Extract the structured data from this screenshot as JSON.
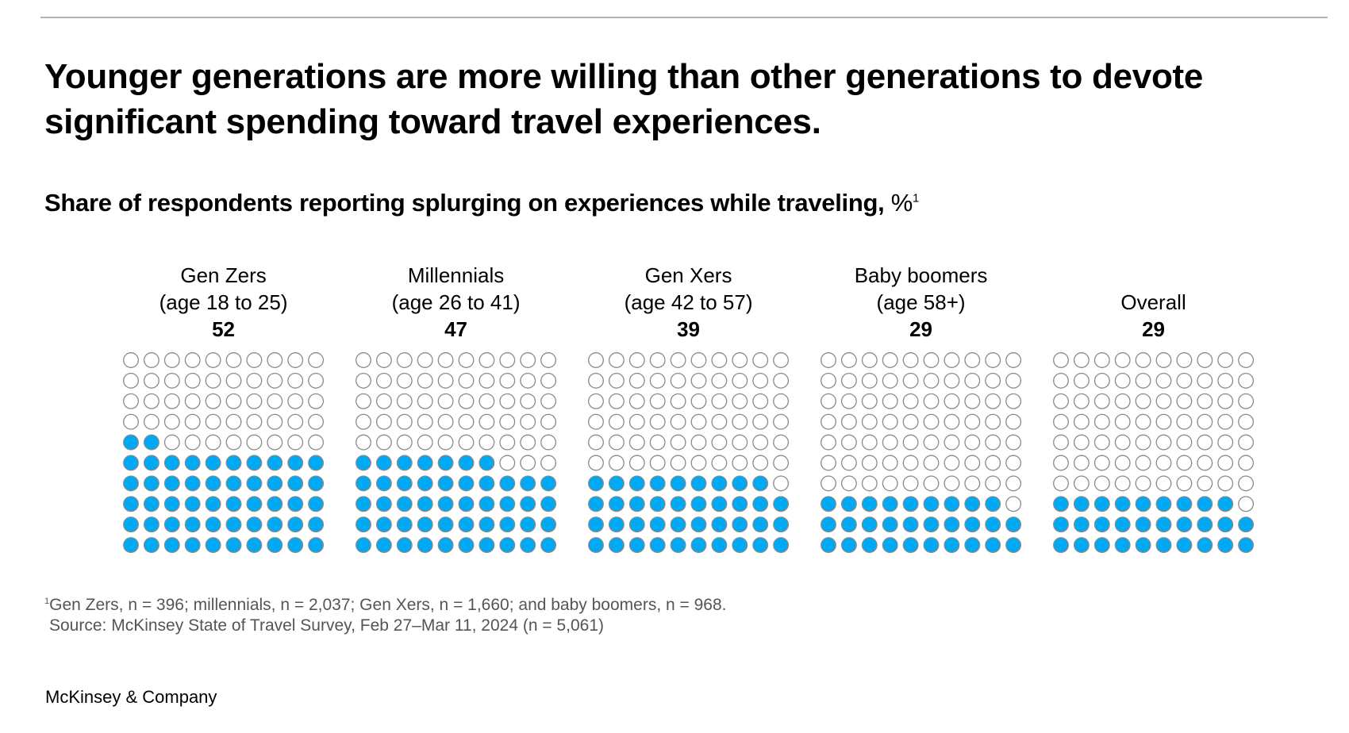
{
  "title": "Younger generations are more willing than other generations to devote significant spending toward travel experiences.",
  "subtitle": "Share of respondents reporting splurging on experiences while traveling,",
  "subtitle_unit": "%",
  "subtitle_note": "1",
  "colors": {
    "filled": "#00a9f4",
    "stroke": "#8a8a8a",
    "empty": "#ffffff"
  },
  "chart_data": {
    "type": "waffle",
    "title": "Share of respondents reporting splurging on experiences while traveling, %",
    "grid": "10x10",
    "categories": [
      {
        "name": "Gen Zers",
        "sub": "(age 18 to 25)",
        "value": 52
      },
      {
        "name": "Millennials",
        "sub": "(age 26 to 41)",
        "value": 47
      },
      {
        "name": "Gen Xers",
        "sub": "(age 42 to 57)",
        "value": 39
      },
      {
        "name": "Baby boomers",
        "sub": "(age 58+)",
        "value": 29
      },
      {
        "name": "Overall",
        "sub": "",
        "value": 29
      }
    ]
  },
  "footnote": {
    "marker": "1",
    "text": "Gen Zers, n = 396; millennials, n = 2,037; Gen Xers, n = 1,660; and baby boomers, n = 968.",
    "source": "Source: McKinsey State of Travel Survey, Feb 27–Mar 11, 2024 (n = 5,061)"
  },
  "logo": "McKinsey & Company"
}
